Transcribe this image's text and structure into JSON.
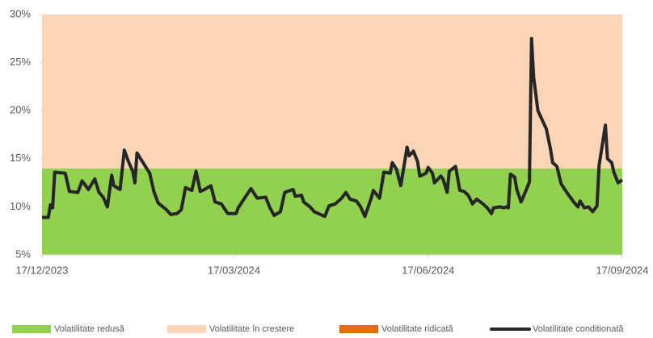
{
  "chart_data": {
    "type": "line",
    "bands": [
      {
        "name": "Volatilitate redusă",
        "color": "#92d050",
        "from": 5,
        "to": 14
      },
      {
        "name": "Volatilitate în crestere",
        "color": "#fbd5b5",
        "from": 14,
        "to": 30
      },
      {
        "name": "Volatilitate ridicată",
        "color": "#e36c09"
      }
    ],
    "x": [
      "17/12/2023",
      "20/12/2023",
      "21/12/2023",
      "22/12/2023",
      "23/12/2023",
      "28/12/2023",
      "30/12/2023",
      "03/01/2024",
      "05/01/2024",
      "08/01/2024",
      "11/01/2024",
      "13/01/2024",
      "15/01/2024",
      "17/01/2024",
      "19/01/2024",
      "20/01/2024",
      "23/01/2024",
      "25/01/2024",
      "27/01/2024",
      "29/01/2024",
      "30/01/2024",
      "31/01/2024",
      "02/02/2024",
      "06/02/2024",
      "08/02/2024",
      "10/02/2024",
      "14/02/2024",
      "16/02/2024",
      "19/02/2024",
      "21/02/2024",
      "23/02/2024",
      "26/02/2024",
      "28/02/2024",
      "01/03/2024",
      "03/03/2024",
      "06/03/2024",
      "08/03/2024",
      "11/03/2024",
      "14/03/2024",
      "18/03/2024",
      "19/03/2024",
      "22/03/2024",
      "25/03/2024",
      "28/03/2024",
      "01/04/2024",
      "03/04/2024",
      "05/04/2024",
      "08/04/2024",
      "10/04/2024",
      "14/04/2024",
      "15/04/2024",
      "18/04/2024",
      "19/04/2024",
      "22/04/2024",
      "24/04/2024",
      "29/04/2024",
      "01/05/2024",
      "04/05/2024",
      "07/05/2024",
      "09/05/2024",
      "11/05/2024",
      "14/05/2024",
      "16/05/2024",
      "18/05/2024",
      "21/05/2024",
      "22/05/2024",
      "25/05/2024",
      "27/05/2024",
      "30/05/2024",
      "31/05/2024",
      "02/06/2024",
      "04/06/2024",
      "07/06/2024",
      "08/06/2024",
      "10/06/2024",
      "12/06/2024",
      "13/06/2024",
      "16/06/2024",
      "17/06/2024",
      "19/06/2024",
      "20/06/2024",
      "23/06/2024",
      "24/06/2024",
      "26/06/2024",
      "27/06/2024",
      "30/06/2024",
      "02/07/2024",
      "04/07/2024",
      "06/07/2024",
      "08/07/2024",
      "10/07/2024",
      "13/07/2024",
      "15/07/2024",
      "17/07/2024",
      "18/07/2024",
      "21/07/2024",
      "23/07/2024",
      "24/07/2024",
      "25/07/2024",
      "26/07/2024",
      "28/07/2024",
      "29/07/2024",
      "31/07/2024",
      "02/08/2024",
      "04/08/2024",
      "05/08/2024",
      "06/08/2024",
      "08/08/2024",
      "12/08/2024",
      "14/08/2024",
      "15/08/2024",
      "17/08/2024",
      "19/08/2024",
      "22/08/2024",
      "25/08/2024",
      "27/08/2024",
      "28/08/2024",
      "30/08/2024",
      "01/09/2024",
      "03/09/2024",
      "05/09/2024",
      "06/09/2024",
      "09/09/2024",
      "10/09/2024",
      "12/09/2024",
      "13/09/2024",
      "15/09/2024",
      "17/09/2024"
    ],
    "series": [
      {
        "name": "Volatilitate conditionată",
        "color": "#262626",
        "values": [
          8.9,
          8.9,
          10.2,
          9.9,
          13.6,
          13.5,
          11.6,
          11.5,
          12.7,
          11.8,
          12.9,
          11.5,
          11.0,
          10.0,
          13.3,
          12.2,
          11.8,
          15.9,
          14.7,
          13.7,
          12.5,
          15.6,
          14.9,
          13.5,
          11.6,
          10.4,
          9.7,
          9.2,
          9.3,
          9.7,
          12.0,
          11.7,
          13.7,
          11.6,
          11.8,
          12.2,
          10.5,
          10.3,
          9.3,
          9.3,
          9.9,
          10.9,
          11.9,
          10.9,
          11.0,
          9.9,
          9.1,
          9.5,
          11.5,
          11.8,
          11.1,
          11.2,
          10.5,
          10.0,
          9.5,
          9.0,
          10.1,
          10.3,
          10.9,
          11.5,
          10.8,
          10.6,
          10.0,
          9.0,
          10.9,
          11.7,
          10.9,
          13.6,
          13.5,
          14.6,
          13.9,
          12.2,
          16.2,
          15.3,
          15.8,
          14.7,
          13.2,
          13.5,
          14.1,
          13.5,
          12.5,
          13.2,
          12.9,
          11.5,
          13.7,
          14.2,
          11.7,
          11.6,
          11.2,
          10.3,
          10.8,
          10.3,
          9.9,
          9.3,
          9.9,
          10.0,
          9.9,
          10.0,
          9.9,
          13.4,
          13.1,
          11.8,
          10.5,
          11.5,
          12.6,
          27.5,
          23.5,
          20.0,
          18.1,
          16.0,
          14.6,
          14.2,
          12.4,
          11.4,
          10.5,
          10.0,
          10.6,
          9.9,
          10.0,
          9.5,
          10.1,
          14.3,
          18.5,
          15.0,
          14.6,
          13.6,
          12.5,
          12.8
        ]
      }
    ],
    "xlim": [
      "17/12/2023",
      "17/09/2024"
    ],
    "xticks": [
      "17/12/2023",
      "17/03/2024",
      "17/06/2024",
      "17/09/2024"
    ],
    "ylim": [
      5,
      30
    ],
    "yticks": [
      {
        "value": 5,
        "label": "5%"
      },
      {
        "value": 10,
        "label": "10%"
      },
      {
        "value": 15,
        "label": "15%"
      },
      {
        "value": 20,
        "label": "20%"
      },
      {
        "value": 25,
        "label": "25%"
      },
      {
        "value": 30,
        "label": "30%"
      }
    ]
  }
}
